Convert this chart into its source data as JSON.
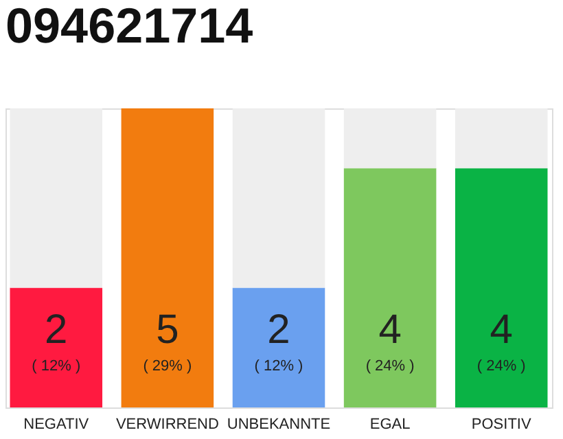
{
  "chart_data": {
    "type": "bar",
    "title": "094621714",
    "categories": [
      "NEGATIV",
      "VERWIRREND",
      "UNBEKANNTE",
      "EGAL",
      "POSITIV"
    ],
    "stacked": true,
    "tick_labels": "x",
    "series": [
      {
        "colors": [
          "#ff1a40",
          "#f27c0f",
          "#6aa0ef",
          "#7ec85e",
          "#0ab345"
        ],
        "values": [
          2,
          5,
          2,
          4,
          4
        ],
        "value_labels": [
          "2",
          "5",
          "2",
          "4",
          "4"
        ]
      },
      {
        "color": "#eeeeee",
        "values": [
          3,
          0,
          3,
          1,
          1
        ]
      }
    ],
    "annotations": [
      "( 12% )",
      "( 29% )",
      "( 12% )",
      "( 24% )",
      "( 24% )"
    ]
  }
}
